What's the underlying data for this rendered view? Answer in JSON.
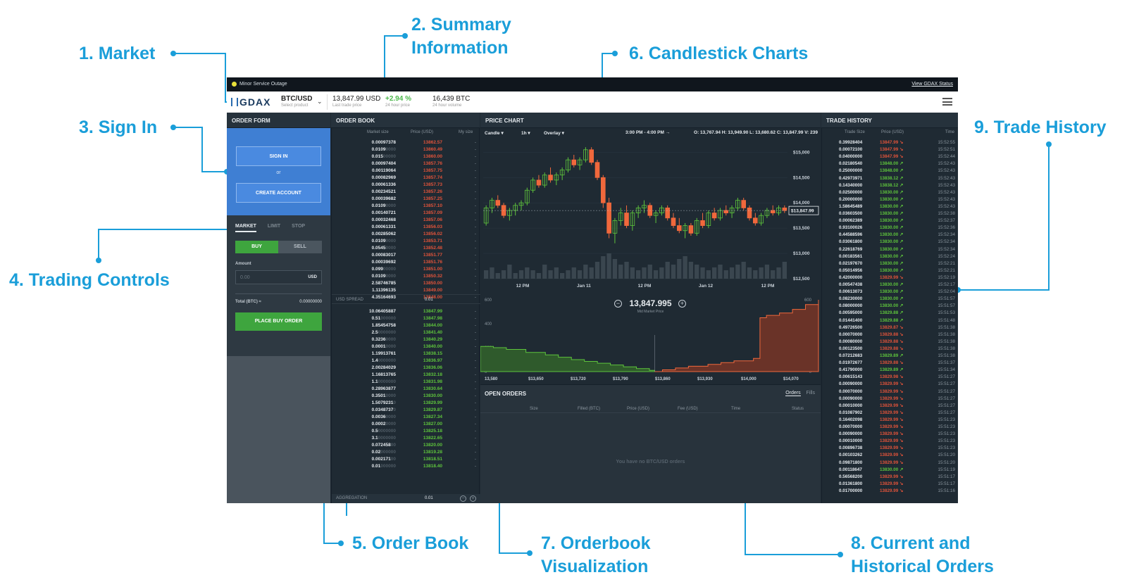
{
  "callouts": [
    {
      "id": "market",
      "text": "1. Market"
    },
    {
      "id": "summary",
      "text": "2. Summary\nInformation"
    },
    {
      "id": "signin",
      "text": "3. Sign In"
    },
    {
      "id": "trading",
      "text": "4. Trading Controls"
    },
    {
      "id": "orderbook",
      "text": "5. Order Book"
    },
    {
      "id": "candles",
      "text": "6. Candlestick Charts"
    },
    {
      "id": "viz",
      "text": "7. Orderbook\nVisualization"
    },
    {
      "id": "orders",
      "text": "8. Current and\nHistorical Orders"
    },
    {
      "id": "history",
      "text": "9. Trade History"
    }
  ],
  "banner": {
    "status": "Minor Service Outage",
    "link": "View GDAX Status"
  },
  "header": {
    "logo": "GDAX",
    "product": "BTC/USD",
    "product_sub": "Select product",
    "last_price": "13,847.99 USD",
    "last_price_sub": "Last trade price",
    "change": "+2.94 %",
    "change_sub": "24 hour price",
    "volume": "16,439 BTC",
    "volume_sub": "24 hour volume"
  },
  "order_form": {
    "title": "ORDER FORM",
    "sign_in": "SIGN IN",
    "or": "or",
    "create_account": "CREATE ACCOUNT",
    "tabs": [
      "MARKET",
      "LIMIT",
      "STOP"
    ],
    "buy": "BUY",
    "sell": "SELL",
    "amount_label": "Amount",
    "amount_placeholder": "0.00",
    "amount_unit": "USD",
    "total_label": "Total (BTC) ≈",
    "total_value": "0.00000000",
    "place_order": "PLACE BUY ORDER"
  },
  "order_book": {
    "title": "ORDER BOOK",
    "cols": {
      "size": "Market size",
      "price": "Price (USD)",
      "mine": "My size"
    },
    "asks": [
      [
        "0.00097378",
        "13862.57"
      ],
      [
        "0.0109",
        "13860.49"
      ],
      [
        "0.015",
        "13860.00"
      ],
      [
        "0.00097404",
        "13857.76"
      ],
      [
        "0.00119064",
        "13857.75"
      ],
      [
        "0.00082969",
        "13857.74"
      ],
      [
        "0.00061336",
        "13857.73"
      ],
      [
        "0.00234521",
        "13857.26"
      ],
      [
        "0.00039682",
        "13857.25"
      ],
      [
        "0.0109",
        "13857.10"
      ],
      [
        "0.00140721",
        "13857.09"
      ],
      [
        "0.00032468",
        "13857.06"
      ],
      [
        "0.00061331",
        "13856.03"
      ],
      [
        "0.00285062",
        "13856.02"
      ],
      [
        "0.0109",
        "13853.71"
      ],
      [
        "0.0545",
        "13852.48"
      ],
      [
        "0.00083017",
        "13851.77"
      ],
      [
        "0.00039692",
        "13851.76"
      ],
      [
        "0.099",
        "13851.00"
      ],
      [
        "0.0109",
        "13850.32"
      ],
      [
        "2.58746785",
        "13850.00"
      ],
      [
        "1.11396135",
        "13849.00"
      ],
      [
        "4.35164693",
        "13848.00"
      ]
    ],
    "spread_label": "USD SPREAD",
    "spread_value": "0.01",
    "bids": [
      [
        "10.06405887",
        "13847.99"
      ],
      [
        "0.51",
        "13847.98"
      ],
      [
        "1.85454758",
        "13844.00"
      ],
      [
        "2.5",
        "13841.40"
      ],
      [
        "0.3236",
        "13840.29"
      ],
      [
        "0.0001",
        "13840.00"
      ],
      [
        "1.19913761",
        "13838.15"
      ],
      [
        "1.4",
        "13836.97"
      ],
      [
        "2.00284029",
        "13836.06"
      ],
      [
        "1.16813765",
        "13832.18"
      ],
      [
        "1.1",
        "13831.98"
      ],
      [
        "0.28963877",
        "13830.64"
      ],
      [
        "0.3501",
        "13830.00"
      ],
      [
        "1.5079231",
        "13829.99"
      ],
      [
        "0.0348737",
        "13829.87"
      ],
      [
        "0.0036",
        "13827.34"
      ],
      [
        "0.0002",
        "13827.00"
      ],
      [
        "0.5",
        "13825.18"
      ],
      [
        "3.1",
        "13822.65"
      ],
      [
        "0.072458",
        "13820.00"
      ],
      [
        "0.02",
        "13819.28"
      ],
      [
        "0.002171",
        "13818.51"
      ],
      [
        "0.01",
        "13818.40"
      ]
    ],
    "aggregation_label": "AGGREGATION",
    "aggregation_value": "0.01"
  },
  "price_chart": {
    "title": "PRICE CHART",
    "controls": [
      "Candle ▾",
      "1h ▾",
      "Overlay ▾"
    ],
    "range": "3:00 PM - 4:00 PM →",
    "ohlc": "O: 13,767.94  H: 13,949.90  L: 13,680.62  C: 13,847.99  V: 239",
    "y_ticks": [
      "$15,000",
      "$14,500",
      "$14,000",
      "$13,500",
      "$13,000",
      "$12,500"
    ],
    "x_ticks": [
      "12 PM",
      "Jan 11",
      "12 PM",
      "Jan 12",
      "12 PM"
    ],
    "current_price_tag": "$13,847.99",
    "mid_price": "13,847.995",
    "mid_price_label": "Mid Market Price",
    "depth_x_ticks": [
      "13,580",
      "$13,650",
      "$13,720",
      "$13,790",
      "$13,860",
      "$13,930",
      "$14,000",
      "$14,070"
    ],
    "depth_y_ticks": [
      "600",
      "400",
      "200",
      "0"
    ]
  },
  "chart_data": {
    "type": "candlestick",
    "y_ticks": [
      15000,
      14500,
      14000,
      13500,
      13000,
      12500
    ],
    "x_ticks": [
      "12 PM",
      "Jan 11",
      "12 PM",
      "Jan 12",
      "12 PM"
    ],
    "ylim": [
      12500,
      15200
    ],
    "last_close": 13847.99,
    "candles": [
      [
        13600,
        13950,
        13550,
        13900
      ],
      [
        13900,
        14100,
        13800,
        14050
      ],
      [
        14050,
        14150,
        13900,
        13950
      ],
      [
        13950,
        14000,
        13700,
        13750
      ],
      [
        13750,
        13900,
        13650,
        13850
      ],
      [
        13850,
        14000,
        13750,
        13950
      ],
      [
        13950,
        14050,
        13850,
        14000
      ],
      [
        14000,
        14300,
        13950,
        14250
      ],
      [
        14250,
        14500,
        14200,
        14450
      ],
      [
        14450,
        14550,
        14300,
        14350
      ],
      [
        14350,
        14600,
        14300,
        14550
      ],
      [
        14550,
        14700,
        14400,
        14450
      ],
      [
        14450,
        14600,
        14350,
        14550
      ],
      [
        14550,
        14700,
        14450,
        14650
      ],
      [
        14650,
        14900,
        14600,
        14850
      ],
      [
        14850,
        14950,
        14700,
        14750
      ],
      [
        14750,
        14900,
        14650,
        14850
      ],
      [
        14850,
        15100,
        14800,
        15050
      ],
      [
        15050,
        15100,
        14750,
        14800
      ],
      [
        14800,
        14850,
        14450,
        14500
      ],
      [
        14500,
        14550,
        13900,
        14000
      ],
      [
        14000,
        14100,
        13300,
        13400
      ],
      [
        13400,
        13700,
        13200,
        13650
      ],
      [
        13650,
        13900,
        13550,
        13800
      ],
      [
        13800,
        13950,
        13500,
        13550
      ],
      [
        13550,
        13850,
        13450,
        13800
      ],
      [
        13800,
        13950,
        13700,
        13900
      ],
      [
        13900,
        14050,
        13800,
        13950
      ],
      [
        13950,
        14000,
        13700,
        13750
      ],
      [
        13750,
        13850,
        13600,
        13800
      ],
      [
        13800,
        13950,
        13750,
        13900
      ],
      [
        13900,
        13950,
        13650,
        13700
      ],
      [
        13700,
        13800,
        13500,
        13550
      ],
      [
        13550,
        13700,
        13400,
        13450
      ],
      [
        13450,
        13600,
        13300,
        13550
      ],
      [
        13550,
        13600,
        13350,
        13400
      ],
      [
        13400,
        13700,
        13350,
        13650
      ],
      [
        13650,
        13800,
        13500,
        13550
      ],
      [
        13550,
        13850,
        13500,
        13800
      ],
      [
        13800,
        13900,
        13650,
        13700
      ],
      [
        13700,
        13900,
        13650,
        13850
      ],
      [
        13850,
        13950,
        13750,
        13800
      ],
      [
        13800,
        13950,
        13700,
        13900
      ],
      [
        13900,
        14100,
        13850,
        14050
      ],
      [
        14050,
        14100,
        13850,
        13900
      ],
      [
        13900,
        13950,
        13650,
        13700
      ],
      [
        13700,
        13800,
        13550,
        13600
      ],
      [
        13600,
        13800,
        13550,
        13750
      ],
      [
        13750,
        13900,
        13700,
        13850
      ],
      [
        13850,
        13950,
        13750,
        13800
      ],
      [
        13800,
        13950,
        13750,
        13900
      ],
      [
        13900,
        13950,
        13800,
        13848
      ]
    ],
    "volumes": [
      3,
      4,
      2,
      3,
      5,
      2,
      3,
      4,
      3,
      2,
      5,
      3,
      4,
      2,
      3,
      4,
      3,
      5,
      4,
      6,
      8,
      9,
      7,
      5,
      6,
      4,
      3,
      4,
      5,
      3,
      4,
      6,
      5,
      7,
      8,
      6,
      5,
      4,
      3,
      4,
      5,
      3,
      4,
      5,
      6,
      4,
      3,
      4,
      5,
      3,
      4,
      6
    ],
    "depth": {
      "x_ticks": [
        "13,580",
        "$13,650",
        "$13,720",
        "$13,790",
        "$13,860",
        "$13,930",
        "$14,000",
        "$14,070"
      ],
      "y_ticks": [
        600,
        400,
        200,
        0
      ],
      "mid": 13847.995,
      "bids": [
        [
          13580,
          210
        ],
        [
          13600,
          200
        ],
        [
          13620,
          185
        ],
        [
          13650,
          160
        ],
        [
          13680,
          140
        ],
        [
          13700,
          120
        ],
        [
          13720,
          100
        ],
        [
          13740,
          85
        ],
        [
          13760,
          70
        ],
        [
          13780,
          55
        ],
        [
          13800,
          40
        ],
        [
          13820,
          25
        ],
        [
          13840,
          10
        ],
        [
          13848,
          0
        ]
      ],
      "asks": [
        [
          13848,
          0
        ],
        [
          13860,
          15
        ],
        [
          13880,
          30
        ],
        [
          13900,
          45
        ],
        [
          13930,
          60
        ],
        [
          13950,
          75
        ],
        [
          13970,
          90
        ],
        [
          14000,
          110
        ],
        [
          14010,
          450
        ],
        [
          14020,
          470
        ],
        [
          14040,
          490
        ],
        [
          14060,
          520
        ],
        [
          14080,
          560
        ],
        [
          14100,
          600
        ]
      ]
    }
  },
  "open_orders": {
    "title": "OPEN ORDERS",
    "tabs": [
      "Orders",
      "Fills"
    ],
    "cols": [
      "Size",
      "Filled (BTC)",
      "Price (USD)",
      "Fee (USD)",
      "Time",
      "Status"
    ],
    "empty": "You have no BTC/USD orders"
  },
  "trade_history": {
    "title": "TRADE HISTORY",
    "cols": {
      "size": "Trade Size",
      "price": "Price (USD)",
      "time": "Time"
    },
    "rows": [
      [
        "0.39928404",
        "13847.99",
        "r",
        "15:52:55"
      ],
      [
        "0.00072100",
        "13847.99",
        "r",
        "15:52:51"
      ],
      [
        "0.04000000",
        "13847.99",
        "r",
        "15:52:44"
      ],
      [
        "0.02180540",
        "13848.00",
        "g",
        "15:52:43"
      ],
      [
        "0.25000000",
        "13848.00",
        "g",
        "15:52:43"
      ],
      [
        "0.42973971",
        "13838.12",
        "g",
        "15:52:43"
      ],
      [
        "0.14340000",
        "13838.12",
        "g",
        "15:52:43"
      ],
      [
        "0.02500000",
        "13830.00",
        "g",
        "15:52:43"
      ],
      [
        "0.20000000",
        "13830.00",
        "g",
        "15:52:43"
      ],
      [
        "1.58645489",
        "13830.00",
        "g",
        "15:52:43"
      ],
      [
        "0.03603500",
        "13830.00",
        "g",
        "15:52:38"
      ],
      [
        "0.00062389",
        "13830.00",
        "g",
        "15:52:37"
      ],
      [
        "0.93100026",
        "13830.00",
        "g",
        "15:52:36"
      ],
      [
        "0.44588596",
        "13830.00",
        "g",
        "15:52:34"
      ],
      [
        "0.03061800",
        "13830.00",
        "g",
        "15:52:34"
      ],
      [
        "0.22618769",
        "13830.00",
        "g",
        "15:52:34"
      ],
      [
        "0.00183561",
        "13830.00",
        "g",
        "15:52:24"
      ],
      [
        "0.02197670",
        "13830.00",
        "g",
        "15:52:21"
      ],
      [
        "0.05014956",
        "13830.00",
        "g",
        "15:52:21"
      ],
      [
        "0.42000000",
        "13829.99",
        "r",
        "15:52:19"
      ],
      [
        "0.00547438",
        "13830.00",
        "g",
        "15:52:17"
      ],
      [
        "0.00613073",
        "13830.00",
        "g",
        "15:52:04"
      ],
      [
        "0.08230000",
        "13830.00",
        "g",
        "15:51:57"
      ],
      [
        "0.08000000",
        "13830.00",
        "g",
        "15:51:57"
      ],
      [
        "0.00595000",
        "13829.88",
        "g",
        "15:51:53"
      ],
      [
        "0.01441400",
        "13829.88",
        "g",
        "15:51:48"
      ],
      [
        "0.49726500",
        "13829.87",
        "r",
        "15:51:38"
      ],
      [
        "0.00070000",
        "13829.88",
        "r",
        "15:51:38"
      ],
      [
        "0.00080000",
        "13829.88",
        "r",
        "15:51:38"
      ],
      [
        "0.00123500",
        "13829.88",
        "r",
        "15:51:38"
      ],
      [
        "0.07212683",
        "13829.89",
        "g",
        "15:51:38"
      ],
      [
        "0.01972677",
        "13829.88",
        "r",
        "15:51:37"
      ],
      [
        "0.41790000",
        "13829.89",
        "g",
        "15:51:34"
      ],
      [
        "0.00615143",
        "13829.98",
        "r",
        "15:51:27"
      ],
      [
        "0.00090000",
        "13829.99",
        "r",
        "15:51:27"
      ],
      [
        "0.00070000",
        "13829.99",
        "r",
        "15:51:27"
      ],
      [
        "0.00090000",
        "13829.99",
        "r",
        "15:51:27"
      ],
      [
        "0.00010000",
        "13829.99",
        "r",
        "15:51:27"
      ],
      [
        "0.01087902",
        "13829.99",
        "r",
        "15:51:27"
      ],
      [
        "0.16402098",
        "13829.99",
        "r",
        "15:51:23"
      ],
      [
        "0.00070000",
        "13829.99",
        "r",
        "15:51:23"
      ],
      [
        "0.00090000",
        "13829.99",
        "r",
        "15:51:23"
      ],
      [
        "0.00010000",
        "13829.99",
        "r",
        "15:51:23"
      ],
      [
        "0.00896738",
        "13829.99",
        "r",
        "15:51:23"
      ],
      [
        "0.00103262",
        "13829.99",
        "r",
        "15:51:20"
      ],
      [
        "0.09871800",
        "13829.99",
        "r",
        "15:51:20"
      ],
      [
        "0.00118647",
        "13830.00",
        "g",
        "15:51:19"
      ],
      [
        "0.56568200",
        "13829.99",
        "r",
        "15:51:17"
      ],
      [
        "0.01361800",
        "13829.99",
        "r",
        "15:51:17"
      ],
      [
        "0.01700000",
        "13829.99",
        "r",
        "15:51:16"
      ]
    ]
  }
}
